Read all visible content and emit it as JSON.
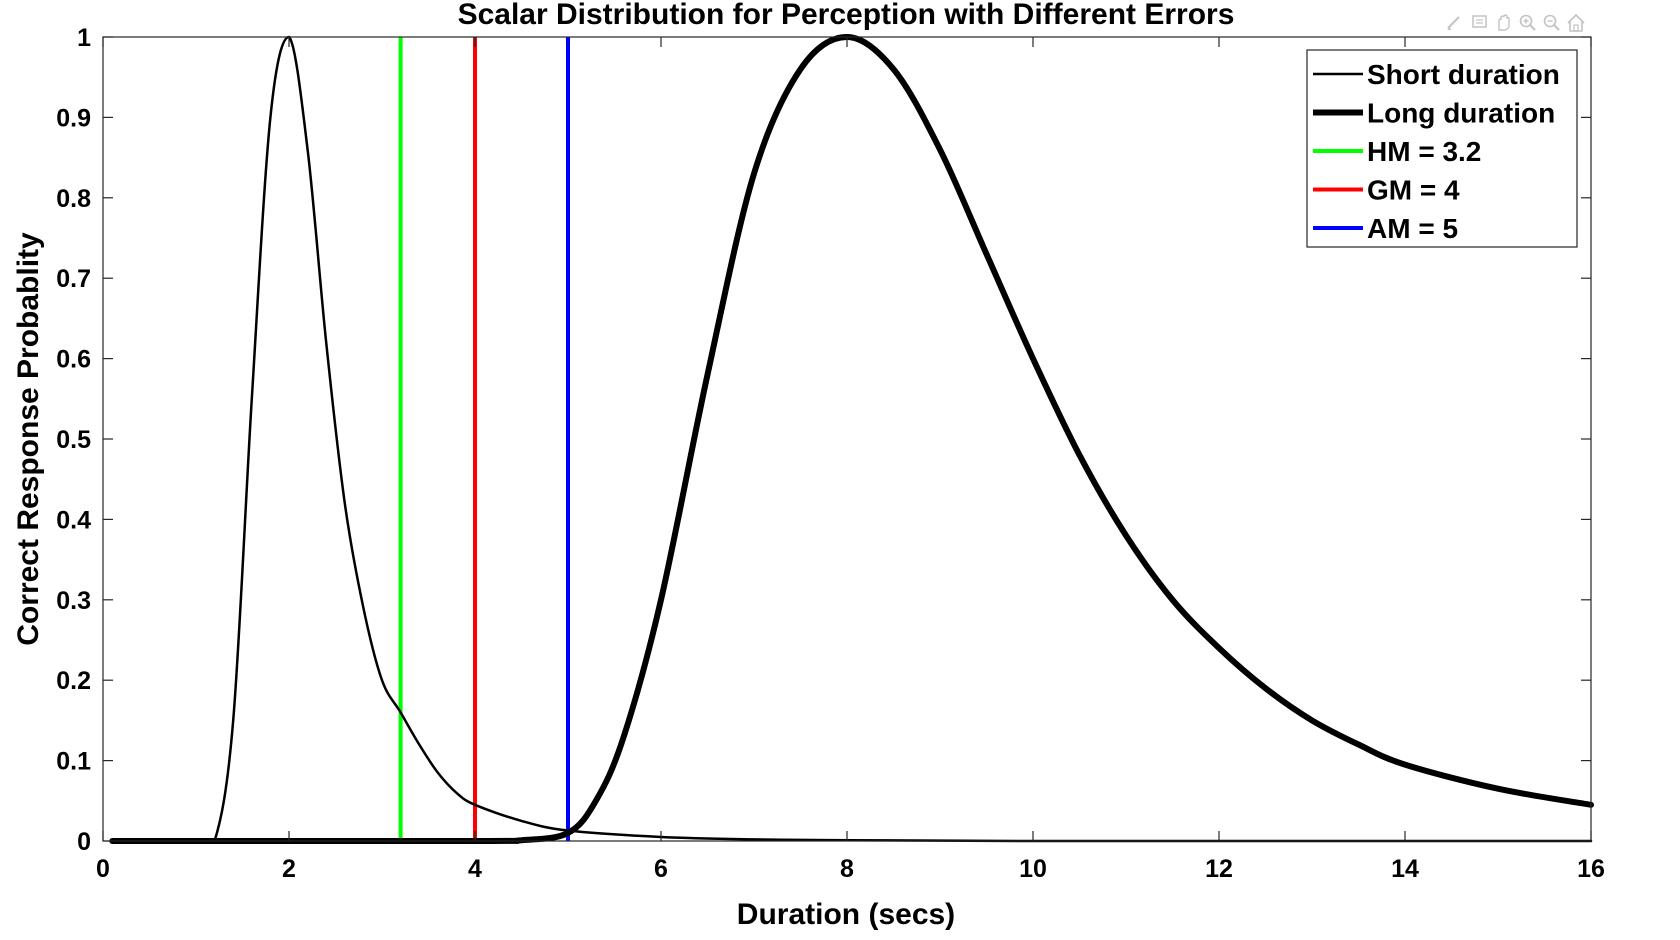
{
  "chart_data": {
    "type": "line",
    "title": "Scalar Distribution for Perception with Different Errors",
    "xlabel": "Duration (secs)",
    "ylabel": "Correct Response Probablity",
    "xlim": [
      0,
      16
    ],
    "ylim": [
      0,
      1
    ],
    "xticks": [
      "0",
      "2",
      "4",
      "6",
      "8",
      "10",
      "12",
      "14",
      "16"
    ],
    "yticks": [
      "0",
      "0.1",
      "0.2",
      "0.3",
      "0.4",
      "0.5",
      "0.6",
      "0.7",
      "0.8",
      "0.9",
      "1"
    ],
    "grid": false,
    "legend_position": "top-right",
    "series": [
      {
        "name": "Short duration",
        "color": "#000000",
        "style": "thin",
        "x": [
          0.1,
          1.0,
          1.2,
          1.4,
          1.6,
          1.8,
          2.0,
          2.2,
          2.4,
          2.6,
          2.8,
          3.0,
          3.2,
          3.4,
          3.6,
          3.8,
          4.0,
          4.5,
          5.0,
          6.0,
          7.0,
          8.0,
          10.0,
          12.0,
          14.0,
          16.0
        ],
        "y": [
          0,
          0,
          0.0,
          0.15,
          0.55,
          0.9,
          1.0,
          0.86,
          0.62,
          0.42,
          0.29,
          0.2,
          0.16,
          0.12,
          0.085,
          0.06,
          0.045,
          0.025,
          0.013,
          0.005,
          0.002,
          0.001,
          0,
          0,
          0,
          0
        ]
      },
      {
        "name": "Long duration",
        "color": "#000000",
        "style": "thick",
        "x": [
          0.1,
          4.0,
          4.5,
          5.0,
          5.3,
          5.6,
          6.0,
          6.5,
          7.0,
          7.5,
          8.0,
          8.5,
          9.0,
          9.5,
          10.0,
          10.5,
          11.0,
          11.5,
          12.0,
          12.5,
          13.0,
          13.5,
          14.0,
          15.0,
          16.0
        ],
        "y": [
          0,
          0,
          0.001,
          0.01,
          0.05,
          0.13,
          0.3,
          0.58,
          0.83,
          0.96,
          1.0,
          0.96,
          0.86,
          0.73,
          0.6,
          0.48,
          0.38,
          0.3,
          0.24,
          0.19,
          0.15,
          0.12,
          0.095,
          0.065,
          0.045
        ]
      }
    ],
    "reference_lines": [
      {
        "name": "HM = 3.2",
        "x": 3.2,
        "color": "#00ff00"
      },
      {
        "name": "GM = 4",
        "x": 4,
        "color": "#ff0000"
      },
      {
        "name": "AM = 5",
        "x": 5,
        "color": "#0000ff"
      }
    ]
  },
  "toolbar": {
    "icons": [
      "brush-icon",
      "data-tips-icon",
      "pan-icon",
      "zoom-in-icon",
      "zoom-out-icon",
      "home-icon"
    ]
  }
}
